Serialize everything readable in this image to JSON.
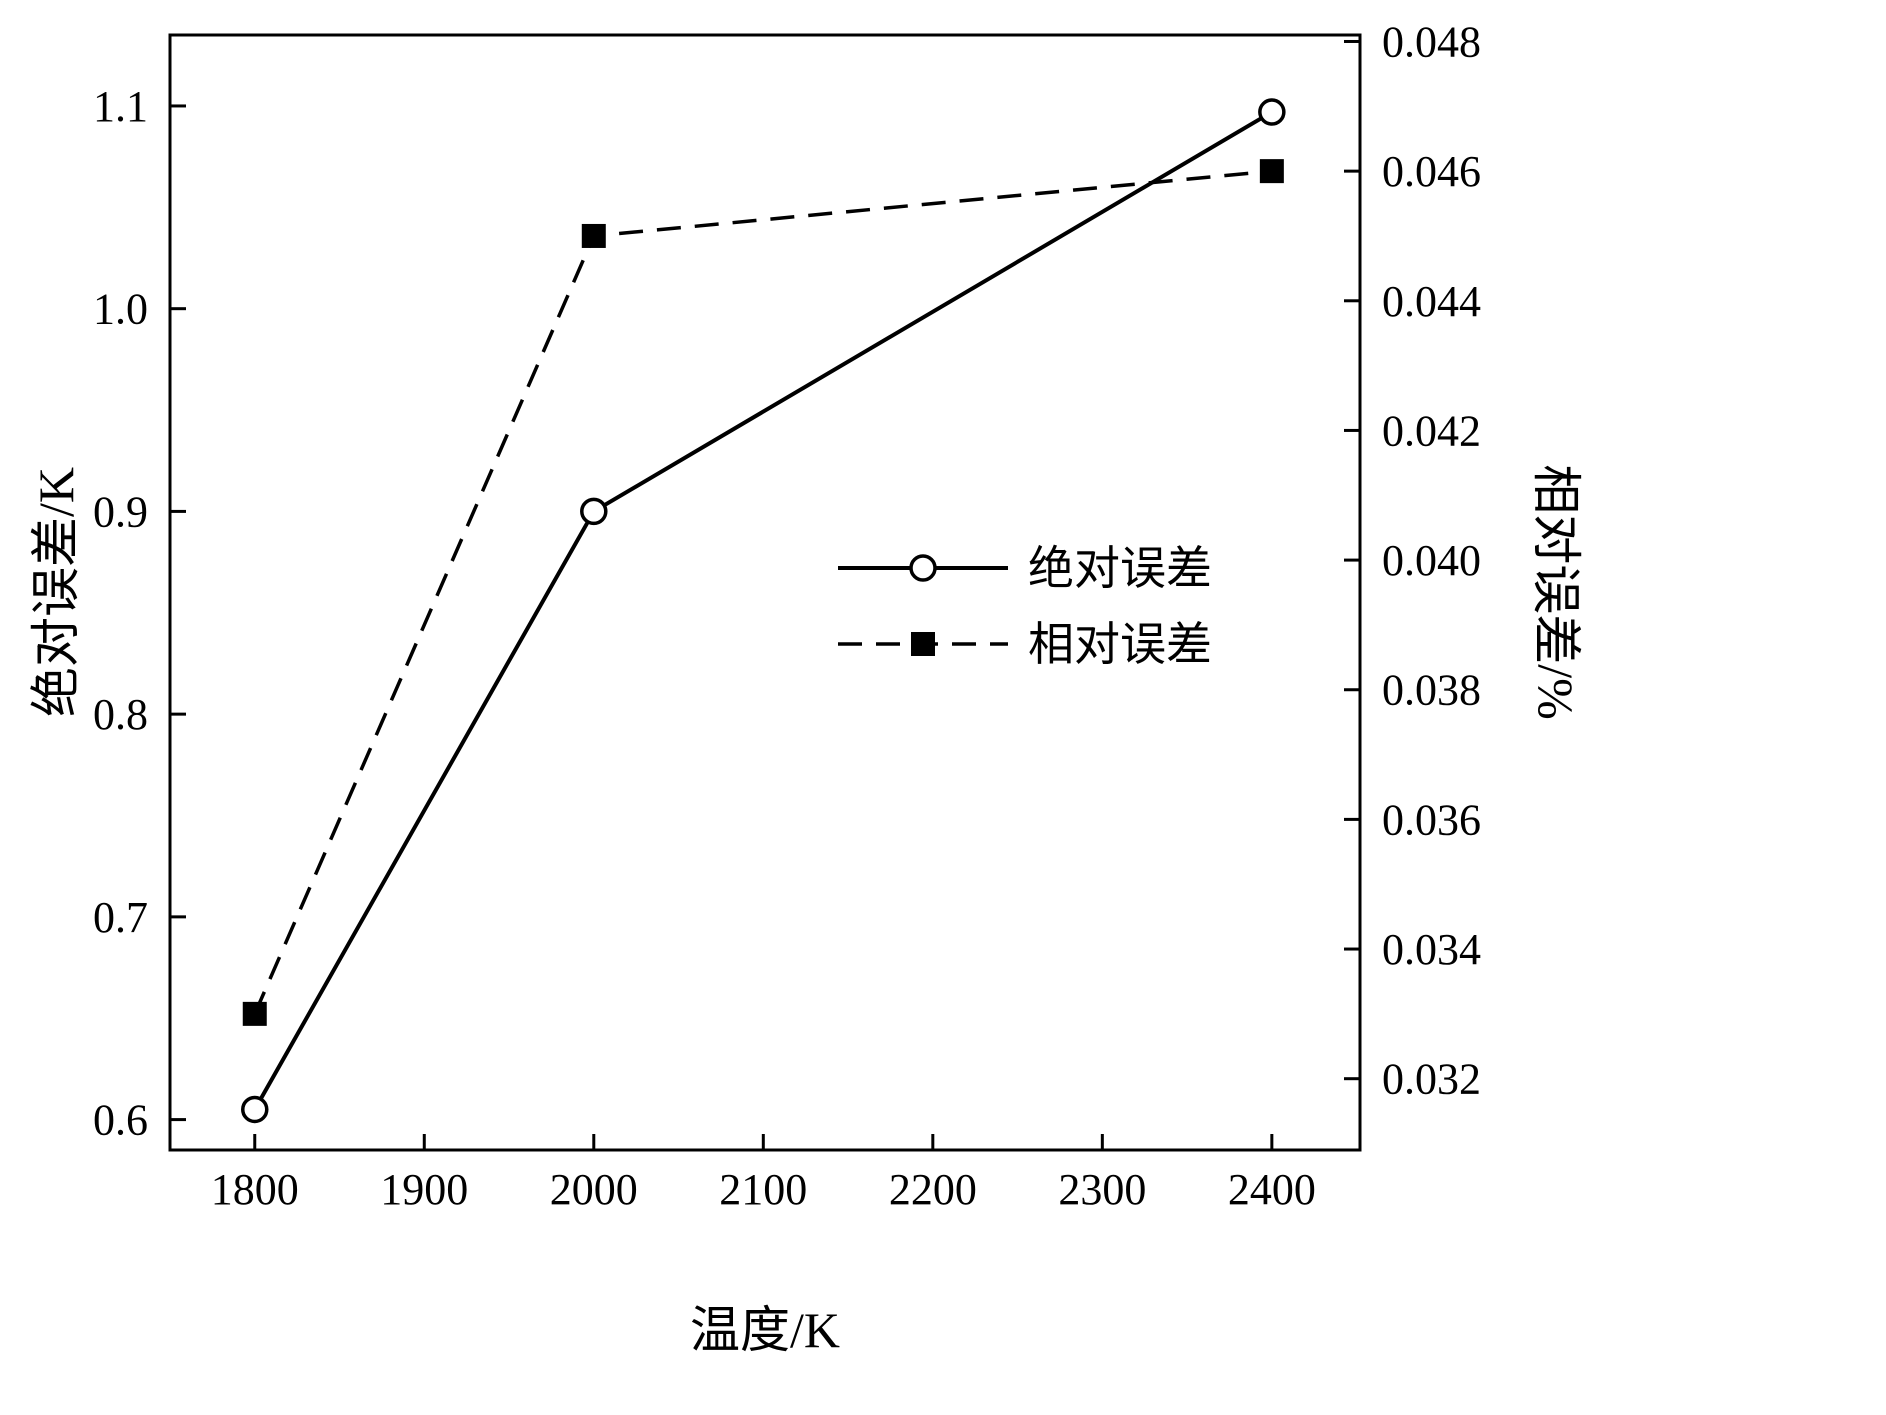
{
  "chart_data": {
    "type": "line",
    "title": "",
    "xlabel": "温度/K",
    "ylabel_left": "绝对误差/K",
    "ylabel_right": "相对误差/%",
    "grid": false,
    "color": "#000000",
    "x_ticks": [
      1800,
      1900,
      2000,
      2100,
      2200,
      2300,
      2400
    ],
    "xlim": [
      1750,
      2452
    ],
    "left_ticks": [
      0.6,
      0.7,
      0.8,
      0.9,
      1.0,
      1.1
    ],
    "left_lim": [
      0.585,
      1.135
    ],
    "right_ticks": [
      0.032,
      0.034,
      0.036,
      0.038,
      0.04,
      0.042,
      0.044,
      0.046,
      0.048
    ],
    "right_lim": [
      0.0309,
      0.0481
    ],
    "legend_position": "center-right",
    "series": [
      {
        "name": "绝对误差",
        "axis": "left",
        "line": "solid",
        "marker": "open-circle",
        "x": [
          1800,
          2000,
          2400
        ],
        "values": [
          0.605,
          0.9,
          1.097
        ]
      },
      {
        "name": "相对误差",
        "axis": "right",
        "line": "dashed",
        "marker": "filled-square",
        "x": [
          1800,
          2000,
          2400
        ],
        "values": [
          0.033,
          0.045,
          0.046
        ]
      }
    ]
  }
}
